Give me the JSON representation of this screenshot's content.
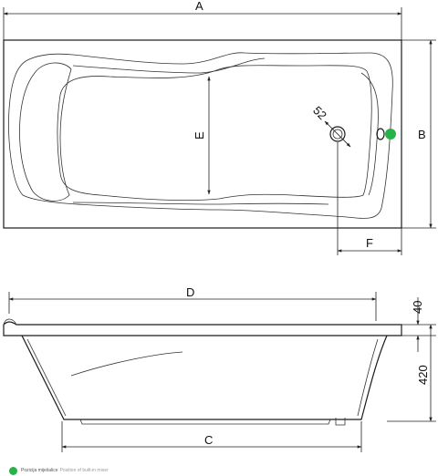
{
  "labels": {
    "a": "A",
    "b": "B",
    "c": "C",
    "d": "D",
    "e": "E",
    "f": "F",
    "drain": "52",
    "rim": "40",
    "height": "420"
  },
  "legend": {
    "text": "Pozicija miješalice",
    "alt": "Position of built-in mixer"
  },
  "colors": {
    "line": "#1a1a1a",
    "mixer_dot": "#29b24a"
  },
  "icons": {
    "mixer_position": "green-dot-icon",
    "drain": "drain-circle-icon"
  }
}
